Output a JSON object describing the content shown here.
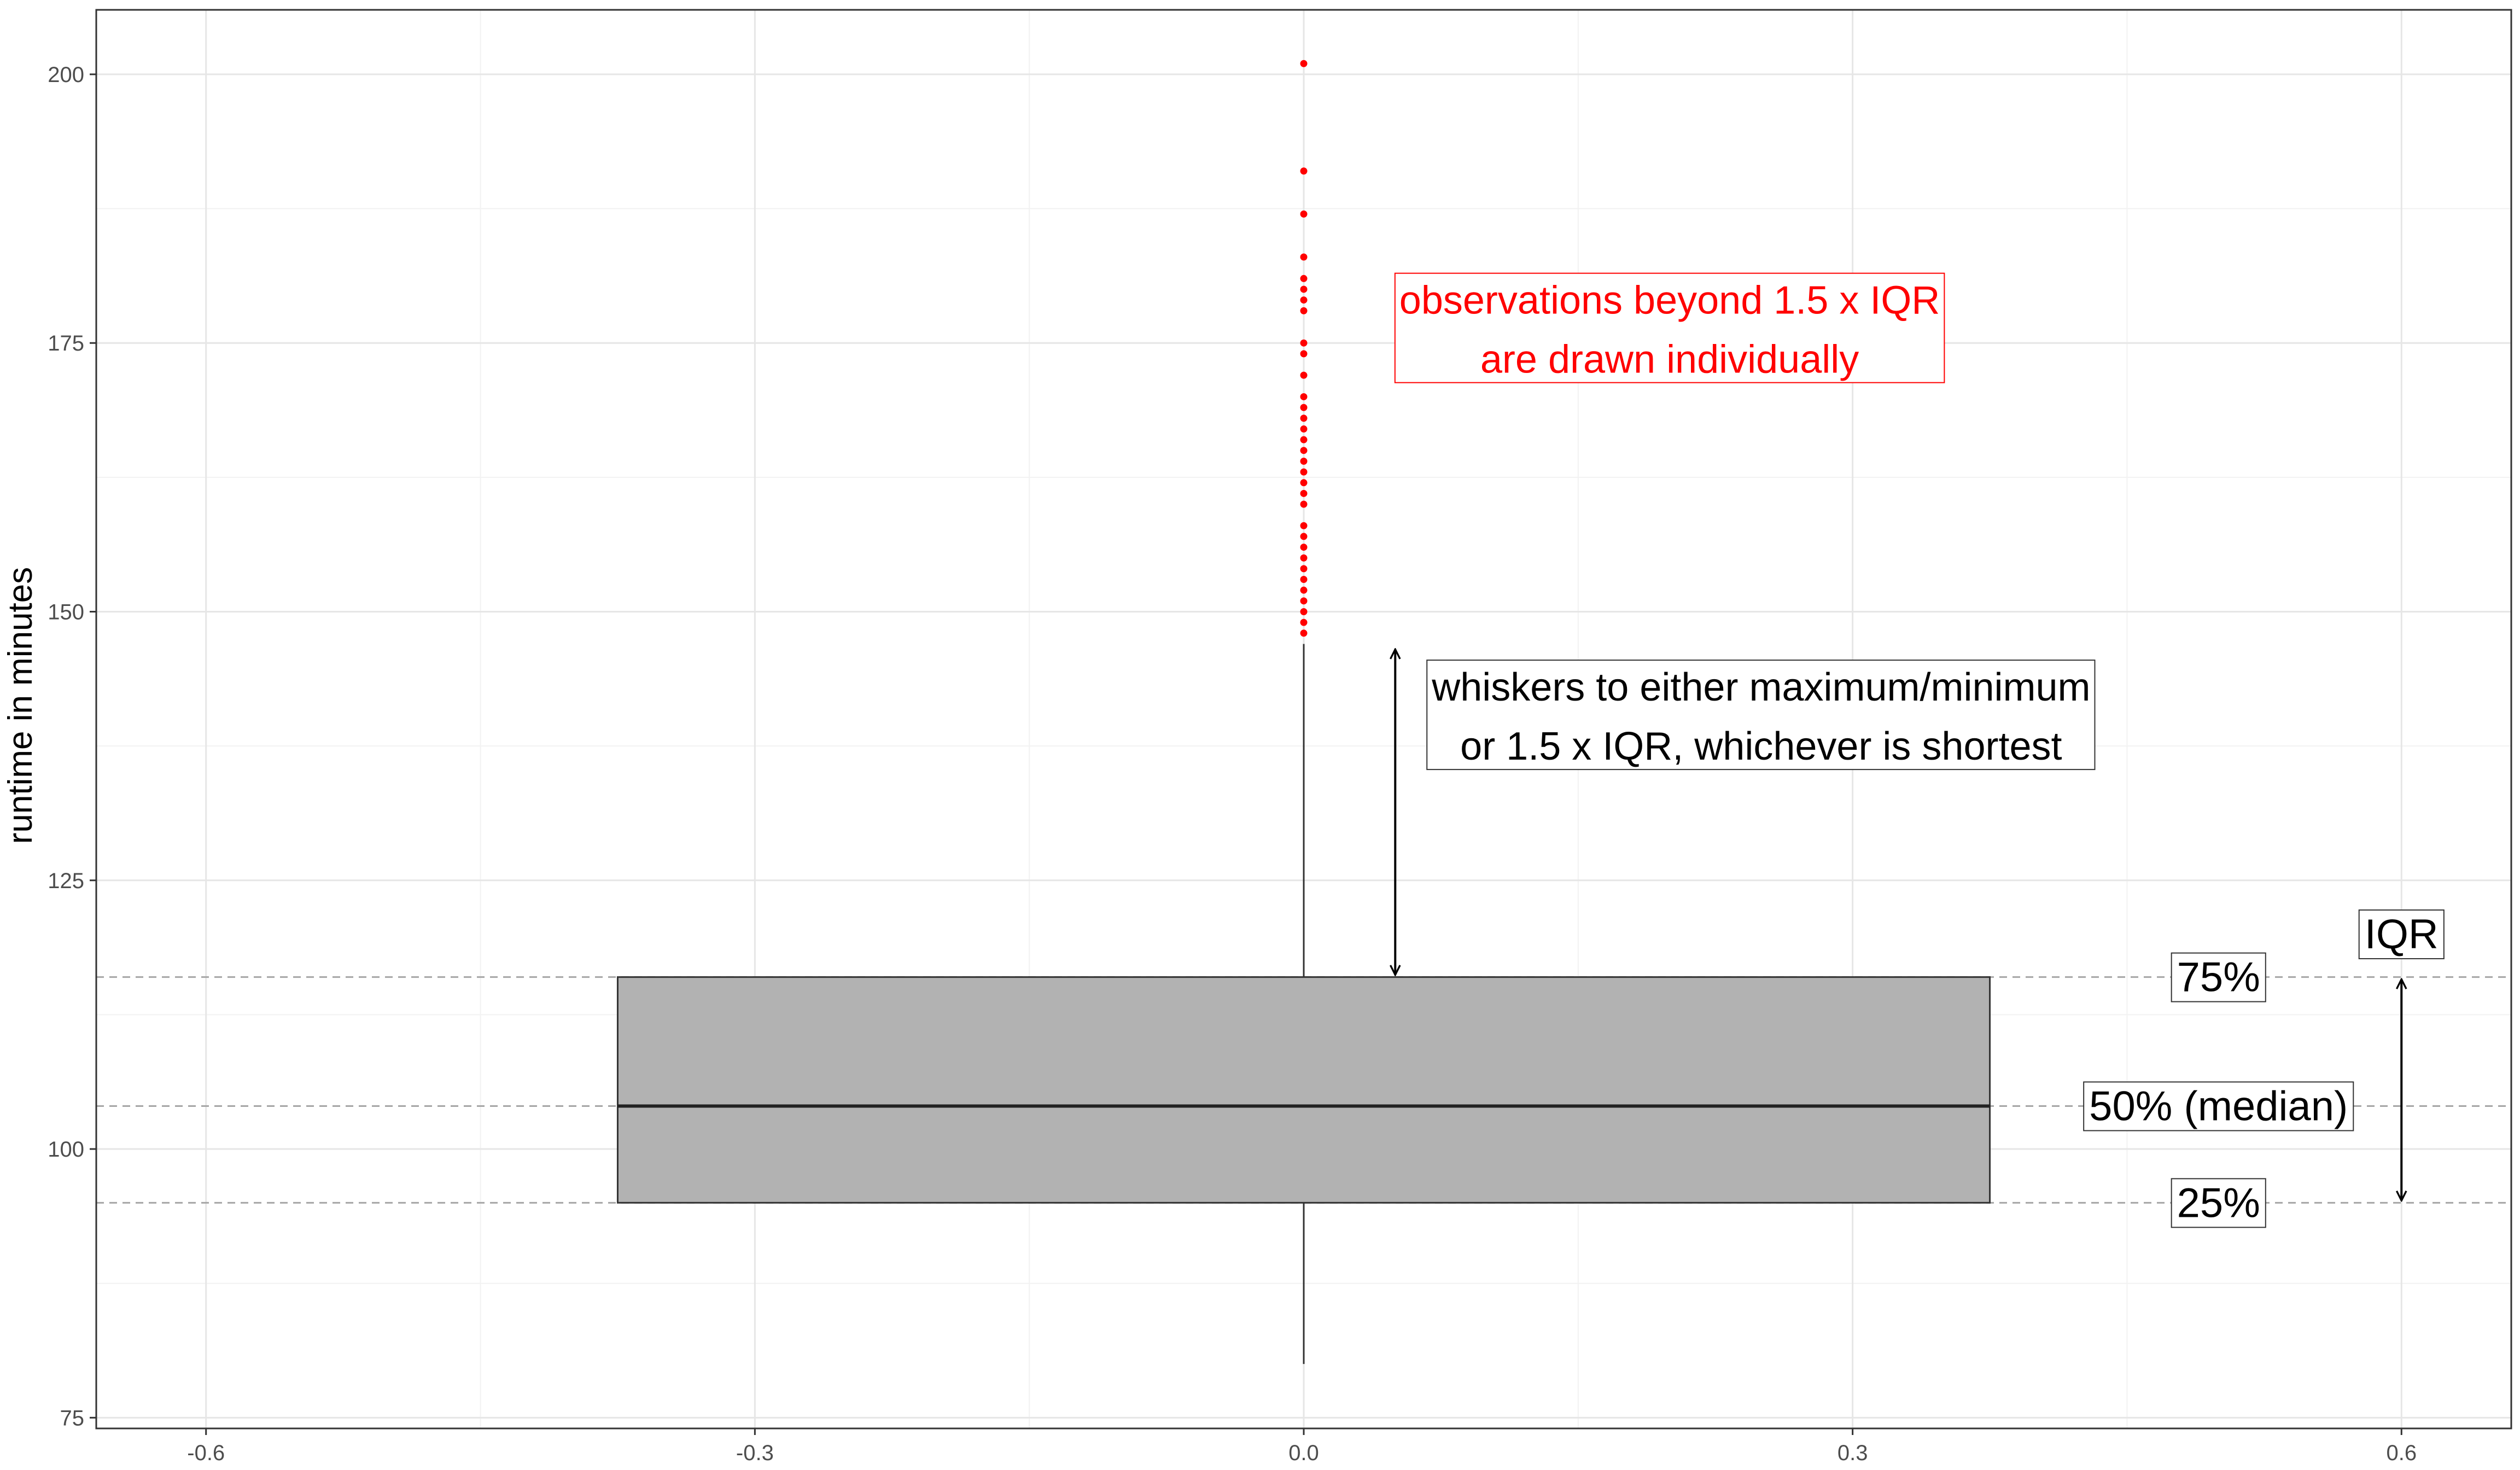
{
  "chart_data": {
    "type": "boxplot",
    "ylabel": "runtime in minutes",
    "xlabel": "",
    "xlim": [
      -0.66,
      0.66
    ],
    "ylim": [
      74,
      206
    ],
    "x_ticks": [
      -0.6,
      -0.3,
      0.0,
      0.3,
      0.6
    ],
    "x_tick_labels": [
      "-0.6",
      "-0.3",
      "0.0",
      "0.3",
      "0.6"
    ],
    "y_ticks": [
      75,
      100,
      125,
      150,
      175,
      200
    ],
    "y_tick_labels": [
      "75",
      "100",
      "125",
      "150",
      "175",
      "200"
    ],
    "grid": true,
    "box": {
      "x_center": 0.0,
      "x_left": -0.375,
      "x_right": 0.375,
      "q1": 95,
      "median": 104,
      "q3": 116,
      "whisker_low": 80,
      "whisker_high": 147,
      "fill": "#b2b2b2"
    },
    "outliers": {
      "color": "#ff0000",
      "values": [
        148,
        149,
        150,
        151,
        152,
        153,
        154,
        155,
        156,
        157,
        158,
        160,
        161,
        162,
        163,
        164,
        165,
        166,
        167,
        168,
        169,
        170,
        172,
        174,
        175,
        178,
        179,
        180,
        181,
        183,
        187,
        191,
        201
      ]
    },
    "reference_lines": [
      116,
      104,
      95
    ],
    "annotations": {
      "outliers_note": {
        "lines": [
          "observations beyond 1.5 x IQR",
          "are drawn individually"
        ],
        "color": "#ff0000",
        "x": 0.2,
        "y": 176.3
      },
      "whisker_note": {
        "lines": [
          "whiskers to either maximum/minimum",
          "or 1.5 x IQR, whichever is shortest"
        ],
        "color": "#000000",
        "x": 0.25,
        "y": 140.3,
        "arrow": {
          "x": 0.05,
          "from": 116,
          "to": 146.5
        }
      },
      "q3_label": {
        "text": "75%",
        "x": 0.5,
        "y": 116
      },
      "median_label": {
        "text": "50% (median)",
        "x": 0.5,
        "y": 104
      },
      "q1_label": {
        "text": "25%",
        "x": 0.5,
        "y": 95
      },
      "iqr_label": {
        "text": "IQR",
        "x": 0.6,
        "y": 120
      },
      "iqr_arrow": {
        "x": 0.6,
        "from": 95,
        "to": 116
      }
    }
  }
}
